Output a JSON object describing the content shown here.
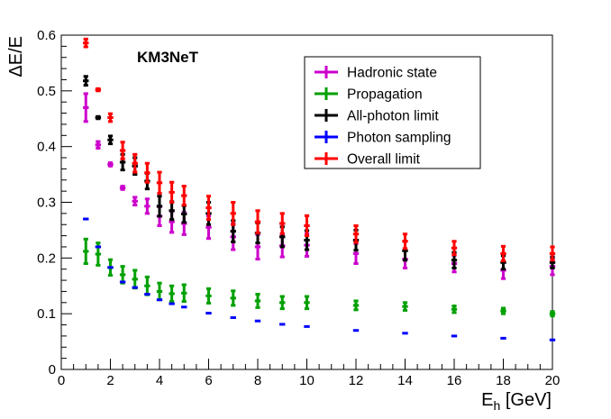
{
  "chart_data": {
    "type": "scatter",
    "title": "",
    "annotation": "KM3NeT",
    "xlabel": {
      "main": "E",
      "sub": "h",
      "unit": " [GeV]"
    },
    "ylabel": "ΔE/E",
    "xlim": [
      0,
      20
    ],
    "ylim": [
      0,
      0.6
    ],
    "x_ticks": [
      0,
      2,
      4,
      6,
      8,
      10,
      12,
      14,
      16,
      18,
      20
    ],
    "y_ticks": [
      0,
      0.1,
      0.2,
      0.3,
      0.4,
      0.5,
      0.6
    ],
    "x_tick_labels": [
      "0",
      "2",
      "4",
      "6",
      "8",
      "10",
      "12",
      "14",
      "16",
      "18",
      "20"
    ],
    "y_tick_labels": [
      "0",
      "0.1",
      "0.2",
      "0.3",
      "0.4",
      "0.5",
      "0.6"
    ],
    "grid": false,
    "legend_position": "top-right",
    "x": [
      1,
      1.5,
      2,
      2.5,
      3,
      3.5,
      4,
      4.5,
      5,
      6,
      7,
      8,
      9,
      10,
      12,
      14,
      16,
      18,
      20
    ],
    "series": [
      {
        "name": "Hadronic state",
        "color": "#cc00cc",
        "values": [
          0.47,
          0.403,
          0.368,
          0.326,
          0.302,
          0.293,
          0.275,
          0.265,
          0.262,
          0.255,
          0.238,
          0.22,
          0.222,
          0.223,
          0.208,
          0.198,
          0.19,
          0.178,
          0.185
        ],
        "errors": [
          0.025,
          0.006,
          0.003,
          0.003,
          0.007,
          0.013,
          0.017,
          0.019,
          0.02,
          0.02,
          0.023,
          0.022,
          0.02,
          0.02,
          0.018,
          0.016,
          0.015,
          0.015,
          0.015
        ]
      },
      {
        "name": "Propagation",
        "color": "#00a000",
        "values": [
          0.212,
          0.207,
          0.183,
          0.17,
          0.162,
          0.15,
          0.14,
          0.136,
          0.137,
          0.132,
          0.128,
          0.123,
          0.12,
          0.12,
          0.115,
          0.113,
          0.108,
          0.105,
          0.1
        ],
        "errors": [
          0.022,
          0.02,
          0.014,
          0.015,
          0.016,
          0.016,
          0.015,
          0.014,
          0.015,
          0.013,
          0.013,
          0.012,
          0.011,
          0.011,
          0.008,
          0.007,
          0.006,
          0.005,
          0.004
        ]
      },
      {
        "name": "All-photon limit",
        "color": "#000000",
        "values": [
          0.518,
          0.452,
          0.412,
          0.372,
          0.365,
          0.338,
          0.293,
          0.285,
          0.279,
          0.28,
          0.248,
          0.245,
          0.238,
          0.232,
          0.232,
          0.213,
          0.196,
          0.192,
          0.192
        ],
        "errors": [
          0.008,
          0.002,
          0.007,
          0.014,
          0.015,
          0.014,
          0.018,
          0.016,
          0.015,
          0.02,
          0.019,
          0.018,
          0.018,
          0.017,
          0.018,
          0.017,
          0.014,
          0.012,
          0.01
        ]
      },
      {
        "name": "Photon sampling",
        "color": "#0000ff",
        "values": [
          0.27,
          0.22,
          0.183,
          0.157,
          0.147,
          0.135,
          0.125,
          0.118,
          0.112,
          0.101,
          0.093,
          0.087,
          0.081,
          0.077,
          0.07,
          0.065,
          0.06,
          0.056,
          0.053
        ],
        "errors": [
          0,
          0,
          0,
          0,
          0,
          0,
          0,
          0,
          0,
          0,
          0,
          0,
          0,
          0,
          0,
          0,
          0,
          0,
          0
        ]
      },
      {
        "name": "Overall limit",
        "color": "#ff0000",
        "values": [
          0.586,
          0.502,
          0.452,
          0.393,
          0.37,
          0.353,
          0.335,
          0.318,
          0.312,
          0.29,
          0.28,
          0.265,
          0.262,
          0.258,
          0.243,
          0.23,
          0.218,
          0.208,
          0.208
        ],
        "errors": [
          0.007,
          0.002,
          0.007,
          0.015,
          0.016,
          0.017,
          0.019,
          0.018,
          0.017,
          0.021,
          0.02,
          0.02,
          0.018,
          0.018,
          0.015,
          0.013,
          0.012,
          0.013,
          0.012
        ]
      }
    ]
  }
}
